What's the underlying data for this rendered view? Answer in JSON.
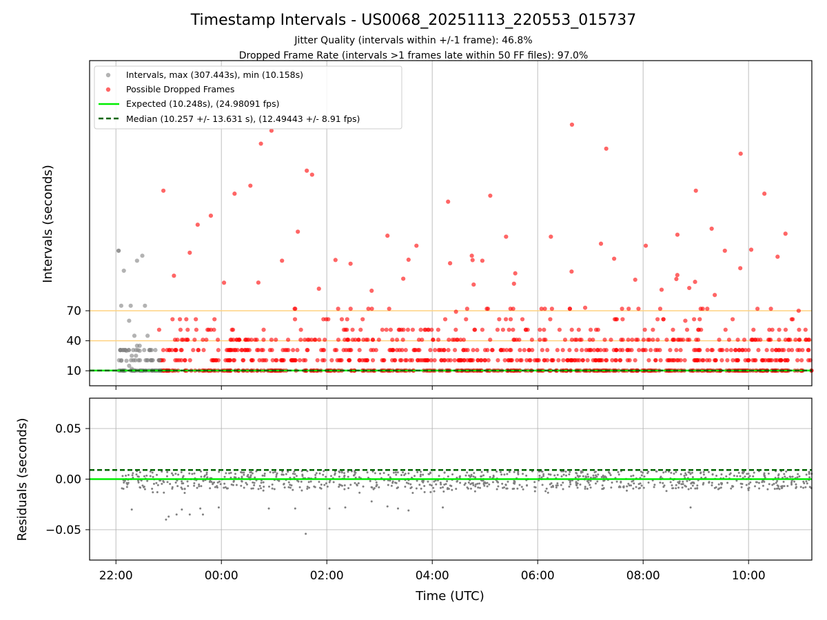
{
  "chart_data": [
    {
      "type": "scatter",
      "title": "Timestamp Intervals - US0068_20251113_220553_015737",
      "subtitle_lines": [
        "Jitter Quality (intervals within +/-1 frame): 46.8%",
        "Dropped Frame Rate (intervals >1 frames late within 50 FF files): 97.0%"
      ],
      "ylabel": "Intervals (seconds)",
      "xlim_hours": [
        -2.5,
        11.2
      ],
      "ylim": [
        -5,
        320
      ],
      "yticks": [
        10,
        40,
        70
      ],
      "ytick_labels": [
        "10",
        "40",
        "70"
      ],
      "x_ticks_hours": [
        -2,
        0,
        2,
        4,
        6,
        8,
        10
      ],
      "grid": true,
      "hlines": [
        {
          "y": 40,
          "color": "#ffd27f"
        },
        {
          "y": 70,
          "color": "#ffd27f"
        }
      ],
      "legend_position": "top-left",
      "legend": [
        {
          "label": "Intervals, max (307.443s), min (10.158s)",
          "marker": "dot",
          "color": "#808080"
        },
        {
          "label": "Possible Dropped Frames",
          "marker": "dot",
          "color": "#ff0000"
        },
        {
          "label": "Expected (10.248s), (24.98091 fps)",
          "marker": "line",
          "color": "#00ee00"
        },
        {
          "label": "Median (10.257 +/- 13.631 s), (12.49443 +/- 8.91 fps)",
          "marker": "dashed",
          "color": "#006400"
        }
      ],
      "expected_interval": 10.248,
      "median_interval": 10.257,
      "series": [
        {
          "name": "Intervals",
          "color": "#808080",
          "x_hours": [
            -1.95,
            -1.9,
            -1.85,
            -1.8,
            -1.75,
            -1.7,
            -1.65,
            -1.6,
            -1.55,
            -1.5,
            -1.45,
            -1.4,
            -1.95,
            -1.85,
            -1.75,
            -1.6,
            -1.5,
            -1.7,
            -1.8,
            -1.65,
            -1.9,
            -1.55,
            -1.72,
            -1.62
          ],
          "y": [
            130,
            75,
            110,
            20,
            15,
            25,
            45,
            35,
            30,
            125,
            75,
            45,
            130,
            10,
            60,
            120,
            10,
            12,
            30,
            10,
            20,
            35,
            75,
            25
          ]
        },
        {
          "name": "Possible Dropped Frames",
          "color": "#ff0000",
          "x_hours": [
            -1.1,
            -0.9,
            -0.6,
            -0.45,
            -0.2,
            0.05,
            0.25,
            0.55,
            0.75,
            0.95,
            1.15,
            1.45,
            1.62,
            1.72,
            1.85,
            2.45,
            2.85,
            3.15,
            3.45,
            3.55,
            3.7,
            4.3,
            4.45,
            4.75,
            4.95,
            5.1,
            5.4,
            5.55,
            6.25,
            6.65,
            6.9,
            7.2,
            7.3,
            7.45,
            7.6,
            7.85,
            8.05,
            8.35,
            8.65,
            8.8,
            9.0,
            9.3,
            9.55,
            9.85,
            10.05,
            10.3,
            10.55,
            10.7,
            10.95
          ],
          "y": [
            190,
            105,
            128,
            156,
            165,
            98,
            187,
            195,
            237,
            250,
            120,
            149,
            210,
            206,
            92,
            117,
            90,
            145,
            102,
            121,
            135,
            179,
            69,
            125,
            120,
            185,
            144,
            97,
            144,
            256,
            73,
            137,
            232,
            122,
            72,
            101,
            135,
            91,
            146,
            60,
            190,
            152,
            130,
            227,
            131,
            187,
            124,
            147,
            70
          ]
        }
      ]
    },
    {
      "type": "scatter",
      "xlabel": "Time (UTC)",
      "ylabel": "Residuals (seconds)",
      "xlim_hours": [
        -2.5,
        11.2
      ],
      "ylim": [
        -0.08,
        0.08
      ],
      "yticks": [
        -0.05,
        0.0,
        0.05
      ],
      "ytick_labels": [
        "−0.05",
        "0.00",
        "0.05"
      ],
      "x_ticks_hours": [
        -2,
        0,
        2,
        4,
        6,
        8,
        10
      ],
      "x_tick_labels": [
        "22:00",
        "00:00",
        "02:00",
        "04:00",
        "06:00",
        "08:00",
        "10:00"
      ],
      "grid": true,
      "expected_residual": 0.0,
      "median_residual": 0.009,
      "series": [
        {
          "name": "Residuals",
          "color": "#808080",
          "x_hours": [
            -1.7,
            -1.3,
            -0.85,
            -0.75,
            -0.6,
            -0.35,
            -0.05,
            0.9,
            1.4,
            1.6,
            2.05,
            2.35,
            2.85,
            3.15,
            3.35,
            3.55,
            4.2,
            8.9,
            -1.05,
            -1.0,
            -0.4
          ],
          "y": [
            -0.03,
            -0.013,
            -0.035,
            -0.03,
            -0.035,
            -0.035,
            -0.028,
            -0.029,
            -0.029,
            -0.054,
            -0.029,
            -0.028,
            -0.022,
            -0.027,
            -0.029,
            -0.031,
            -0.028,
            -0.028,
            -0.04,
            -0.037,
            -0.029
          ]
        }
      ]
    }
  ]
}
